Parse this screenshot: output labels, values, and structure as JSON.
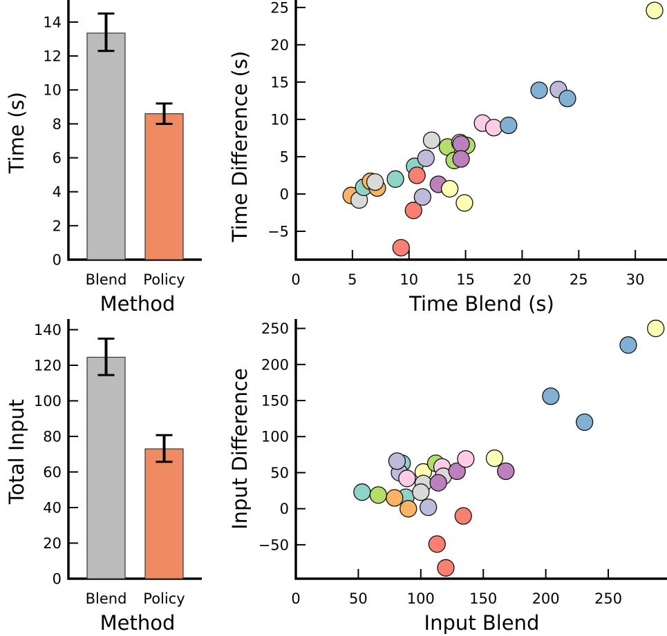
{
  "colors": {
    "blend": "#bbbbbb",
    "policy": "#ef8a62",
    "palette": {
      "teal": "#8dd3c7",
      "yellow": "#ffffb3",
      "lavender": "#bebada",
      "red": "#fb8072",
      "blue": "#80b1d3",
      "orange": "#fdb462",
      "green": "#b3de69",
      "pink": "#fccde5",
      "gray": "#d9d9d9",
      "purple": "#bc80bd"
    }
  },
  "chart_data": [
    {
      "id": "time-bar",
      "type": "bar",
      "title": "",
      "xlabel": "Method",
      "ylabel": "Time (s)",
      "categories": [
        "Blend",
        "Policy"
      ],
      "values": [
        13.35,
        8.6
      ],
      "error_low": [
        12.3,
        8.0
      ],
      "error_high": [
        14.5,
        9.2
      ],
      "ylim": [
        0,
        15.3
      ],
      "yticks": [
        0,
        2,
        4,
        6,
        8,
        10,
        12,
        14
      ],
      "grid": false
    },
    {
      "id": "time-scatter",
      "type": "scatter",
      "title": "",
      "xlabel": "Time Blend (s)",
      "ylabel": "Time Difference (s)",
      "xlim": [
        0,
        32.8
      ],
      "ylim": [
        -8.8,
        26
      ],
      "xticks": [
        0,
        5,
        10,
        15,
        20,
        25,
        30
      ],
      "yticks": [
        -5,
        0,
        5,
        10,
        15,
        20,
        25
      ],
      "grid": false,
      "points": [
        {
          "x": 4.9,
          "y": -0.2,
          "c": "orange"
        },
        {
          "x": 5.6,
          "y": -0.8,
          "c": "gray"
        },
        {
          "x": 6.0,
          "y": 0.9,
          "c": "teal"
        },
        {
          "x": 6.6,
          "y": 1.7,
          "c": "orange"
        },
        {
          "x": 7.2,
          "y": 0.8,
          "c": "orange"
        },
        {
          "x": 7.0,
          "y": 1.6,
          "c": "gray"
        },
        {
          "x": 8.8,
          "y": 2.0,
          "c": "teal"
        },
        {
          "x": 9.3,
          "y": -7.2,
          "c": "red"
        },
        {
          "x": 10.4,
          "y": -2.2,
          "c": "red"
        },
        {
          "x": 10.5,
          "y": 3.7,
          "c": "teal"
        },
        {
          "x": 10.7,
          "y": 2.5,
          "c": "red"
        },
        {
          "x": 11.2,
          "y": -0.4,
          "c": "lavender"
        },
        {
          "x": 11.5,
          "y": 4.8,
          "c": "lavender"
        },
        {
          "x": 12.0,
          "y": 7.2,
          "c": "gray"
        },
        {
          "x": 12.6,
          "y": 1.3,
          "c": "purple"
        },
        {
          "x": 13.6,
          "y": 0.7,
          "c": "yellow"
        },
        {
          "x": 14.9,
          "y": -1.2,
          "c": "yellow"
        },
        {
          "x": 13.4,
          "y": 6.3,
          "c": "green"
        },
        {
          "x": 15.1,
          "y": 6.5,
          "c": "green"
        },
        {
          "x": 14.0,
          "y": 4.5,
          "c": "green"
        },
        {
          "x": 14.5,
          "y": 6.9,
          "c": "pink"
        },
        {
          "x": 14.6,
          "y": 6.7,
          "c": "purple"
        },
        {
          "x": 14.6,
          "y": 4.7,
          "c": "purple"
        },
        {
          "x": 16.5,
          "y": 9.5,
          "c": "pink"
        },
        {
          "x": 17.5,
          "y": 8.9,
          "c": "pink"
        },
        {
          "x": 18.8,
          "y": 9.2,
          "c": "blue"
        },
        {
          "x": 21.5,
          "y": 13.9,
          "c": "blue"
        },
        {
          "x": 23.2,
          "y": 14.0,
          "c": "lavender"
        },
        {
          "x": 24.0,
          "y": 12.8,
          "c": "blue"
        },
        {
          "x": 31.7,
          "y": 24.6,
          "c": "yellow"
        }
      ]
    },
    {
      "id": "input-bar",
      "type": "bar",
      "title": "",
      "xlabel": "Method",
      "ylabel": "Total Input",
      "categories": [
        "Blend",
        "Policy"
      ],
      "values": [
        124.5,
        73
      ],
      "error_low": [
        114.5,
        65.7
      ],
      "error_high": [
        135,
        80.7
      ],
      "ylim": [
        0,
        146
      ],
      "yticks": [
        0,
        20,
        40,
        60,
        80,
        100,
        120,
        140
      ],
      "grid": false
    },
    {
      "id": "input-scatter",
      "type": "scatter",
      "title": "",
      "xlabel": "Input Blend",
      "ylabel": "Input Difference",
      "xlim": [
        0,
        297
      ],
      "ylim": [
        -97,
        263
      ],
      "xticks": [
        0,
        50,
        100,
        150,
        200,
        250
      ],
      "yticks": [
        -50,
        0,
        50,
        100,
        150,
        200,
        250
      ],
      "grid": false,
      "points": [
        {
          "x": 53,
          "y": 23,
          "c": "teal"
        },
        {
          "x": 66,
          "y": 19,
          "c": "green"
        },
        {
          "x": 85,
          "y": 63,
          "c": "teal"
        },
        {
          "x": 83,
          "y": 50,
          "c": "lavender"
        },
        {
          "x": 81,
          "y": 66,
          "c": "lavender"
        },
        {
          "x": 88,
          "y": 16,
          "c": "teal"
        },
        {
          "x": 79,
          "y": 15,
          "c": "orange"
        },
        {
          "x": 90,
          "y": 0,
          "c": "orange"
        },
        {
          "x": 89,
          "y": 42,
          "c": "pink"
        },
        {
          "x": 102,
          "y": 51,
          "c": "yellow"
        },
        {
          "x": 112,
          "y": 63,
          "c": "green"
        },
        {
          "x": 117,
          "y": 58,
          "c": "pink"
        },
        {
          "x": 102,
          "y": 35,
          "c": "gray"
        },
        {
          "x": 118,
          "y": 45,
          "c": "gray"
        },
        {
          "x": 100,
          "y": 23,
          "c": "gray"
        },
        {
          "x": 106,
          "y": 2,
          "c": "lavender"
        },
        {
          "x": 114,
          "y": 36,
          "c": "purple"
        },
        {
          "x": 129,
          "y": 52,
          "c": "purple"
        },
        {
          "x": 136,
          "y": 69,
          "c": "pink"
        },
        {
          "x": 134,
          "y": -10,
          "c": "red"
        },
        {
          "x": 113,
          "y": -49,
          "c": "red"
        },
        {
          "x": 120,
          "y": -82,
          "c": "red"
        },
        {
          "x": 159,
          "y": 70,
          "c": "yellow"
        },
        {
          "x": 168,
          "y": 52,
          "c": "purple"
        },
        {
          "x": 204,
          "y": 156,
          "c": "blue"
        },
        {
          "x": 231,
          "y": 120,
          "c": "blue"
        },
        {
          "x": 266,
          "y": 227,
          "c": "blue"
        },
        {
          "x": 288,
          "y": 250,
          "c": "yellow"
        }
      ]
    }
  ]
}
